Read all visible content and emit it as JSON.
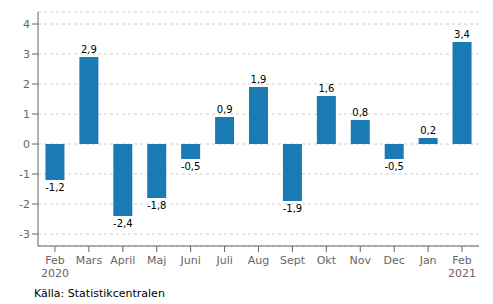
{
  "chart_data": {
    "type": "bar",
    "categories": [
      "Feb\n2020",
      "Mars",
      "April",
      "Maj",
      "Juni",
      "Juli",
      "Aug",
      "Sept",
      "Okt",
      "Nov",
      "Dec",
      "Jan",
      "Feb\n2021"
    ],
    "values": [
      -1.2,
      2.9,
      -2.4,
      -1.8,
      -0.5,
      0.9,
      1.9,
      -1.9,
      1.6,
      0.8,
      -0.5,
      0.2,
      3.4
    ],
    "value_labels": [
      "-1,2",
      "2,9",
      "-2,4",
      "-1,8",
      "-0,5",
      "0,9",
      "1,9",
      "-1,9",
      "1,6",
      "0,8",
      "-0,5",
      "0,2",
      "3,4"
    ],
    "data_labels": true,
    "color": "#1a7ab4",
    "ylim": [
      -3.4,
      4.4
    ],
    "yticks": [
      -3,
      -2,
      -1,
      0,
      1,
      2,
      3,
      4
    ],
    "grid": true,
    "annotation": "Källa: Statistikcentralen"
  }
}
